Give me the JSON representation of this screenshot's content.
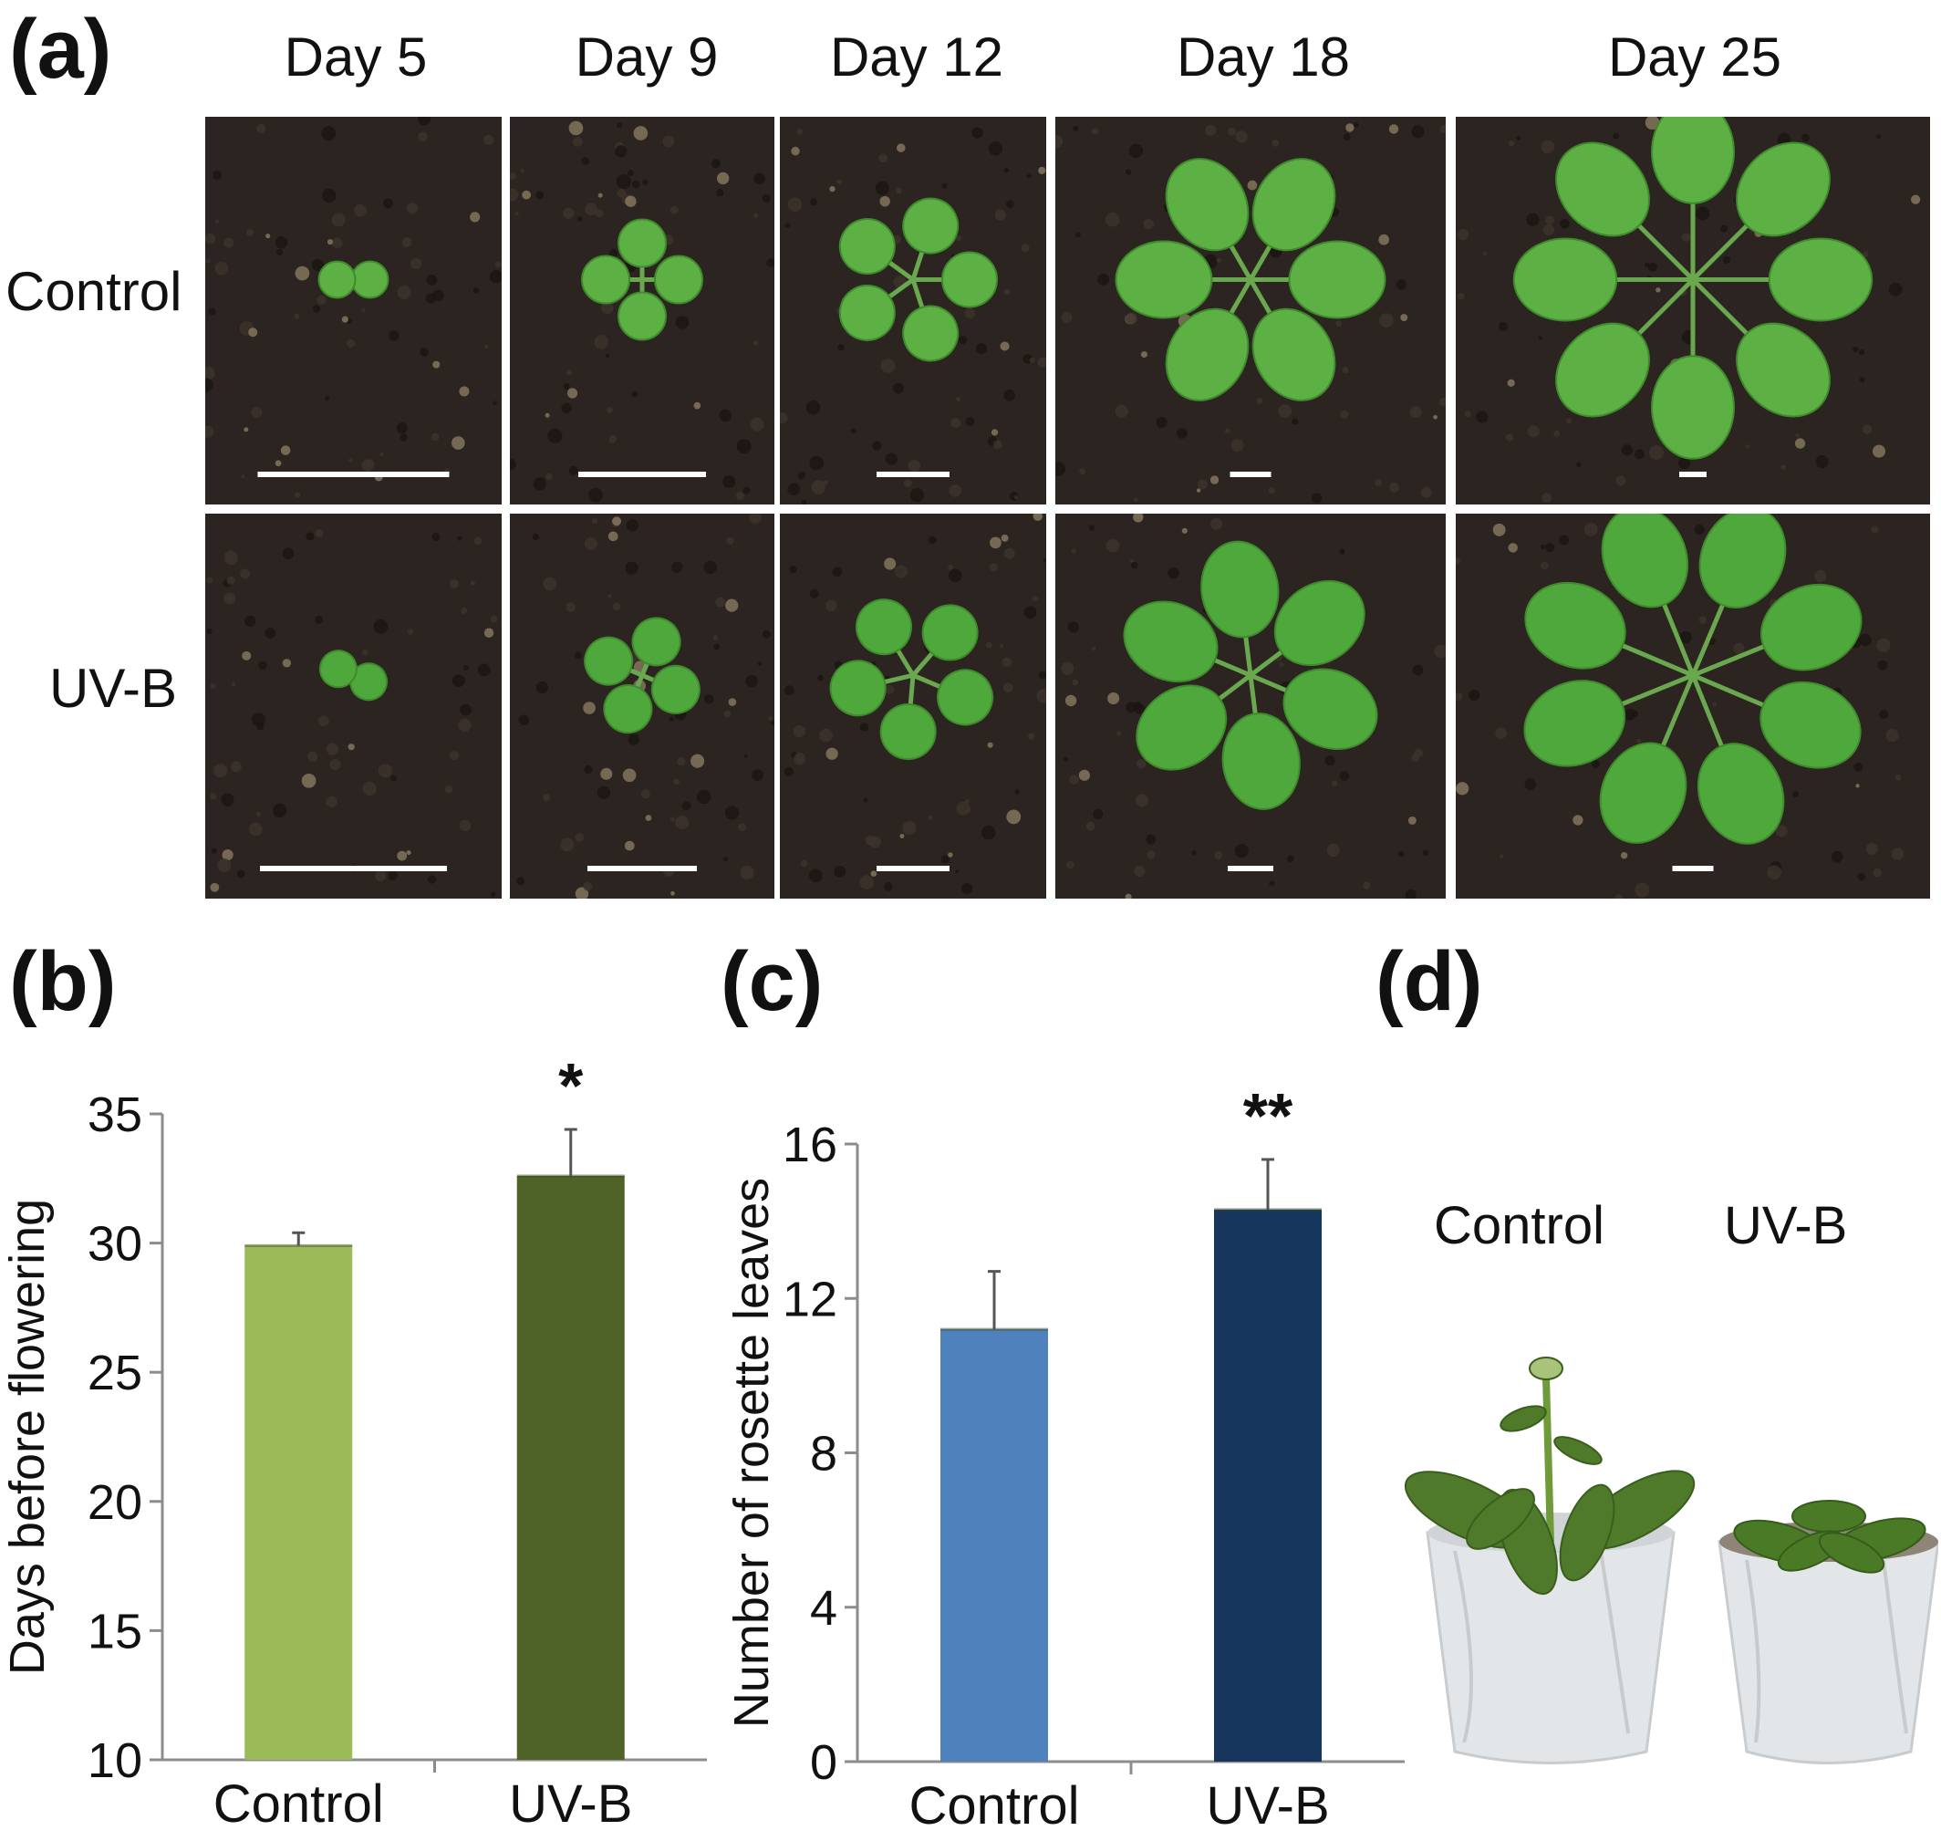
{
  "panel_a": {
    "letter": "(a)",
    "days": [
      "Day 5",
      "Day 9",
      "Day 12",
      "Day 18",
      "Day 25"
    ],
    "rows": [
      "Control",
      "UV-B"
    ]
  },
  "chart_data": [
    {
      "panel": "(b)",
      "type": "bar",
      "categories": [
        "Control",
        "UV-B"
      ],
      "values": [
        29.9,
        32.6
      ],
      "errors": [
        0.5,
        1.8
      ],
      "significance": [
        "",
        "*"
      ],
      "ylabel": "Days before flowering",
      "ylim": [
        10,
        35
      ],
      "yticks": [
        10,
        15,
        20,
        25,
        30,
        35
      ],
      "colors": [
        "#9bbb59",
        "#4f6228"
      ]
    },
    {
      "panel": "(c)",
      "type": "bar",
      "categories": [
        "Control",
        "UV-B"
      ],
      "values": [
        11.2,
        14.3
      ],
      "errors": [
        1.5,
        1.3
      ],
      "significance": [
        "",
        "**"
      ],
      "ylabel": "Number of rosette leaves",
      "ylim": [
        0,
        16
      ],
      "yticks": [
        0,
        4,
        8,
        12,
        16
      ],
      "colors": [
        "#4f81bd",
        "#17365d"
      ]
    }
  ],
  "panel_d": {
    "letter": "(d)",
    "labels": [
      "Control",
      "UV-B"
    ]
  }
}
